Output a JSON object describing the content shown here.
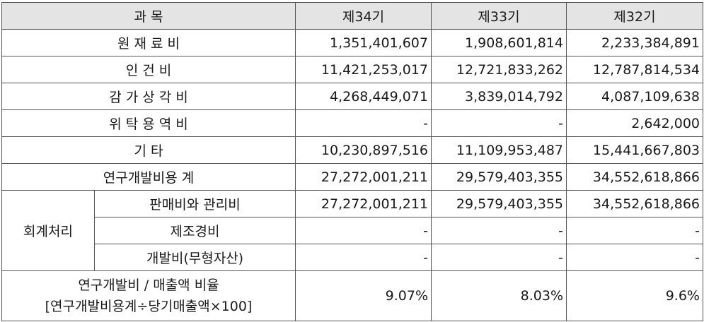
{
  "header": {
    "item": "과 목",
    "periods": [
      "제34기",
      "제33기",
      "제32기"
    ]
  },
  "rows": [
    {
      "label": "원 재 료 비",
      "values": [
        "1,351,401,607",
        "1,908,601,814",
        "2,233,384,891"
      ]
    },
    {
      "label": "인 건 비",
      "values": [
        "11,421,253,017",
        "12,721,833,262",
        "12,787,814,534"
      ]
    },
    {
      "label": "감 가 상 각 비",
      "values": [
        "4,268,449,071",
        "3,839,014,792",
        "4,087,109,638"
      ]
    },
    {
      "label": "위 탁 용 역 비",
      "values": [
        "-",
        "-",
        "2,642,000"
      ]
    },
    {
      "label": "기 타",
      "values": [
        "10,230,897,516",
        "11,109,953,487",
        "15,441,667,803"
      ]
    },
    {
      "label": "연구개발비용 계",
      "values": [
        "27,272,001,211",
        "29,579,403,355",
        "34,552,618,866"
      ]
    }
  ],
  "accounting": {
    "group_label": "회계처리",
    "rows": [
      {
        "label": "판매비와 관리비",
        "values": [
          "27,272,001,211",
          "29,579,403,355",
          "34,552,618,866"
        ]
      },
      {
        "label": "제조경비",
        "values": [
          "-",
          "-",
          "-"
        ]
      },
      {
        "label": "개발비(무형자산)",
        "values": [
          "-",
          "-",
          "-"
        ]
      }
    ]
  },
  "ratio": {
    "label_line1": "연구개발비 / 매출액 비율",
    "label_line2": "[연구개발비용계÷당기매출액×100]",
    "values": [
      "9.07%",
      "8.03%",
      "9.6%"
    ]
  }
}
